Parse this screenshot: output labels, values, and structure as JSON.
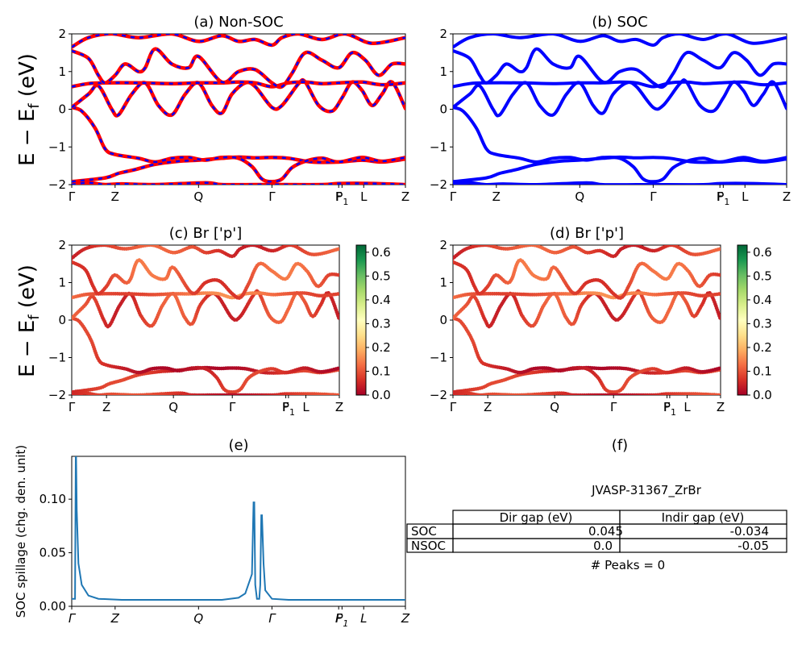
{
  "colors": {
    "nonsoc_band": "#ff0000",
    "nonsoc_dash": "#0000ff",
    "soc_band": "#0000ff",
    "spillage_line": "#1f77b4",
    "colormap": [
      "#a50026",
      "#d73027",
      "#f46d43",
      "#fdae61",
      "#fee08b",
      "#ffffbf",
      "#d9ef8b",
      "#a6d96a",
      "#66bd63",
      "#1a9850",
      "#006837"
    ]
  },
  "ylabel_band": "E − E_f (eV)",
  "kpath": {
    "labels": [
      "Γ",
      "Z",
      "Q",
      "Γ",
      "F",
      "P1",
      "L",
      "Z"
    ],
    "fractions": [
      0,
      0.13,
      0.38,
      0.6,
      0.8,
      0.81,
      0.875,
      1.0
    ]
  },
  "chart_data": [
    {
      "panel": "a",
      "type": "line",
      "title": "(a) Non-SOC",
      "ylim": [
        -2,
        2
      ],
      "yticks": [
        -2,
        -1,
        0,
        1,
        2
      ],
      "bands": [
        [
          [
            0,
            -1.92
          ],
          [
            0.1,
            -1.82
          ],
          [
            0.14,
            -1.7
          ],
          [
            0.19,
            -1.6
          ],
          [
            0.25,
            -1.46
          ],
          [
            0.32,
            -1.38
          ],
          [
            0.38,
            -1.35
          ],
          [
            0.45,
            -1.3
          ],
          [
            0.5,
            -1.27
          ],
          [
            0.55,
            -1.29
          ],
          [
            0.6,
            -1.28
          ],
          [
            0.65,
            -1.3
          ],
          [
            0.72,
            -1.4
          ],
          [
            0.8,
            -1.4
          ],
          [
            0.87,
            -1.35
          ],
          [
            0.93,
            -1.4
          ],
          [
            1.0,
            -1.32
          ]
        ],
        [
          [
            0,
            0.05
          ],
          [
            0.03,
            -0.05
          ],
          [
            0.07,
            -0.5
          ],
          [
            0.1,
            -1.05
          ],
          [
            0.13,
            -1.2
          ],
          [
            0.2,
            -1.3
          ],
          [
            0.25,
            -1.4
          ],
          [
            0.3,
            -1.3
          ],
          [
            0.35,
            -1.28
          ],
          [
            0.4,
            -1.35
          ],
          [
            0.45,
            -1.28
          ],
          [
            0.5,
            -1.3
          ],
          [
            0.54,
            -1.52
          ],
          [
            0.57,
            -1.85
          ],
          [
            0.6,
            -1.92
          ],
          [
            0.63,
            -1.85
          ],
          [
            0.66,
            -1.55
          ],
          [
            0.7,
            -1.38
          ],
          [
            0.75,
            -1.3
          ],
          [
            0.8,
            -1.4
          ],
          [
            0.87,
            -1.28
          ],
          [
            0.93,
            -1.38
          ],
          [
            1.0,
            -1.28
          ]
        ],
        [
          [
            0,
            0.05
          ],
          [
            0.05,
            0.4
          ],
          [
            0.08,
            0.62
          ],
          [
            0.12,
            0.0
          ],
          [
            0.14,
            -0.15
          ],
          [
            0.18,
            0.4
          ],
          [
            0.22,
            0.7
          ],
          [
            0.26,
            0.1
          ],
          [
            0.3,
            -0.15
          ],
          [
            0.34,
            0.4
          ],
          [
            0.38,
            0.7
          ],
          [
            0.42,
            0.1
          ],
          [
            0.45,
            -0.1
          ],
          [
            0.48,
            0.4
          ],
          [
            0.52,
            0.7
          ],
          [
            0.55,
            0.6
          ],
          [
            0.6,
            0.05
          ],
          [
            0.63,
            0.1
          ],
          [
            0.68,
            0.68
          ],
          [
            0.7,
            0.72
          ],
          [
            0.74,
            0.1
          ],
          [
            0.78,
            -0.05
          ],
          [
            0.81,
            0.3
          ],
          [
            0.84,
            0.72
          ],
          [
            0.87,
            0.5
          ],
          [
            0.9,
            0.1
          ],
          [
            0.93,
            0.4
          ],
          [
            0.96,
            0.72
          ],
          [
            1.0,
            0.02
          ]
        ],
        [
          [
            0,
            0.6
          ],
          [
            0.05,
            0.68
          ],
          [
            0.1,
            0.7
          ],
          [
            0.2,
            0.7
          ],
          [
            0.3,
            0.68
          ],
          [
            0.38,
            0.7
          ],
          [
            0.45,
            0.7
          ],
          [
            0.5,
            0.72
          ],
          [
            0.55,
            0.7
          ],
          [
            0.6,
            0.6
          ],
          [
            0.65,
            0.7
          ],
          [
            0.7,
            0.72
          ],
          [
            0.75,
            0.68
          ],
          [
            0.8,
            0.7
          ],
          [
            0.87,
            0.72
          ],
          [
            0.93,
            0.65
          ],
          [
            1.0,
            0.7
          ]
        ],
        [
          [
            0,
            1.55
          ],
          [
            0.05,
            1.35
          ],
          [
            0.08,
            0.9
          ],
          [
            0.1,
            0.7
          ],
          [
            0.13,
            0.9
          ],
          [
            0.16,
            1.2
          ],
          [
            0.2,
            1.0
          ],
          [
            0.22,
            1.1
          ],
          [
            0.25,
            1.6
          ],
          [
            0.3,
            1.2
          ],
          [
            0.35,
            1.1
          ],
          [
            0.38,
            1.4
          ],
          [
            0.45,
            0.72
          ],
          [
            0.5,
            1.0
          ],
          [
            0.55,
            1.05
          ],
          [
            0.6,
            0.7
          ],
          [
            0.63,
            0.6
          ],
          [
            0.66,
            0.95
          ],
          [
            0.7,
            1.5
          ],
          [
            0.75,
            1.3
          ],
          [
            0.8,
            1.1
          ],
          [
            0.84,
            1.5
          ],
          [
            0.88,
            1.3
          ],
          [
            0.92,
            0.9
          ],
          [
            0.96,
            1.2
          ],
          [
            1.0,
            1.2
          ]
        ],
        [
          [
            0,
            1.65
          ],
          [
            0.05,
            1.9
          ],
          [
            0.12,
            2.0
          ],
          [
            0.2,
            1.9
          ],
          [
            0.3,
            2.0
          ],
          [
            0.38,
            1.8
          ],
          [
            0.45,
            1.95
          ],
          [
            0.5,
            1.8
          ],
          [
            0.55,
            1.85
          ],
          [
            0.6,
            1.7
          ],
          [
            0.63,
            1.9
          ],
          [
            0.68,
            2.0
          ],
          [
            0.75,
            1.85
          ],
          [
            0.82,
            2.0
          ],
          [
            0.9,
            1.75
          ],
          [
            1.0,
            1.9
          ]
        ],
        [
          [
            0,
            -2.0
          ],
          [
            0.05,
            -1.95
          ],
          [
            0.1,
            -2.0
          ],
          [
            0.15,
            -1.98
          ],
          [
            0.25,
            -2.0
          ],
          [
            0.4,
            -1.95
          ],
          [
            0.45,
            -2.0
          ],
          [
            0.55,
            -2.0
          ],
          [
            0.6,
            -2.0
          ],
          [
            0.75,
            -2.0
          ],
          [
            0.8,
            -1.97
          ],
          [
            0.9,
            -1.97
          ],
          [
            1.0,
            -2.0
          ]
        ]
      ]
    },
    {
      "panel": "b",
      "type": "line",
      "title": "(b) SOC",
      "ylim": [
        -2,
        2
      ],
      "yticks": [
        -2,
        -1,
        0,
        1,
        2
      ],
      "same_bands_as": "a"
    },
    {
      "panel": "c",
      "type": "scatter",
      "title": "(c)  Br ['p']",
      "ylim": [
        -2,
        2
      ],
      "yticks": [
        -2,
        -1,
        0,
        1,
        2
      ],
      "colorbar": {
        "range": [
          0,
          0.63
        ],
        "ticks": [
          "0.0",
          "0.1",
          "0.2",
          "0.3",
          "0.4",
          "0.5",
          "0.6"
        ]
      },
      "weights_by_band": [
        0.05,
        0.05,
        0.08,
        0.12,
        0.1,
        0.08,
        0.06
      ]
    },
    {
      "panel": "d",
      "type": "scatter",
      "title": "(d) Br ['p']",
      "ylim": [
        -2,
        2
      ],
      "yticks": [
        -2,
        -1,
        0,
        1,
        2
      ],
      "colorbar": {
        "range": [
          0,
          0.63
        ],
        "ticks": [
          "0.0",
          "0.1",
          "0.2",
          "0.3",
          "0.4",
          "0.5",
          "0.6"
        ]
      },
      "weights_by_band": [
        0.05,
        0.05,
        0.08,
        0.12,
        0.1,
        0.08,
        0.06
      ]
    },
    {
      "panel": "e",
      "type": "line",
      "title": "(e)",
      "ylabel": "SOC spillage (chg. den. unit)",
      "ylim": [
        0,
        0.14
      ],
      "yticks": [
        "0.00",
        "0.05",
        "0.10"
      ],
      "xlabels": [
        "Γ",
        "Z",
        "Q",
        "Γ",
        "F",
        "P1",
        "L",
        "Z"
      ],
      "x": [
        0,
        0.01,
        0.012,
        0.013,
        0.015,
        0.02,
        0.03,
        0.05,
        0.08,
        0.15,
        0.25,
        0.35,
        0.45,
        0.5,
        0.52,
        0.54,
        0.545,
        0.547,
        0.55,
        0.555,
        0.56,
        0.562,
        0.565,
        0.568,
        0.57,
        0.575,
        0.58,
        0.6,
        0.65,
        0.75,
        0.9,
        1.0
      ],
      "y": [
        0.007,
        0.007,
        0.14,
        0.14,
        0.09,
        0.04,
        0.02,
        0.01,
        0.007,
        0.006,
        0.006,
        0.006,
        0.006,
        0.008,
        0.012,
        0.03,
        0.097,
        0.097,
        0.02,
        0.007,
        0.007,
        0.007,
        0.02,
        0.085,
        0.085,
        0.04,
        0.015,
        0.007,
        0.006,
        0.006,
        0.006,
        0.006
      ]
    }
  ],
  "panel_f": {
    "title": "(f)",
    "material": "JVASP-31367_ZrBr",
    "table": {
      "columns": [
        "Dir gap (eV)",
        "Indir gap (eV)"
      ],
      "rows": [
        {
          "label": "SOC",
          "dir": "0.045",
          "indir": "-0.034"
        },
        {
          "label": "NSOC",
          "dir": "0.0",
          "indir": "-0.05"
        }
      ]
    },
    "peaks": "# Peaks = 0"
  }
}
